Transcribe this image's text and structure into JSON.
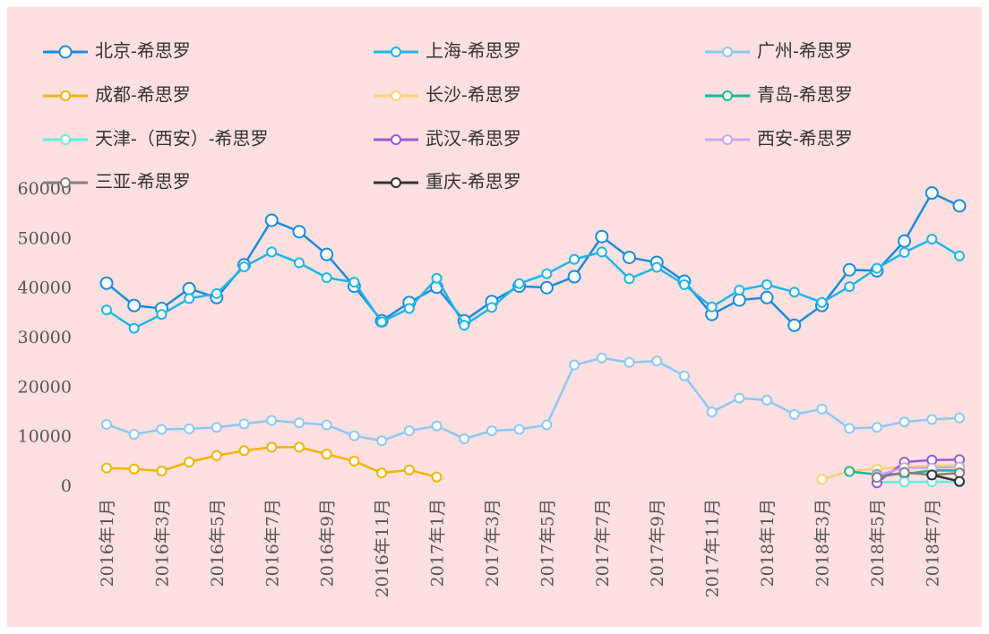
{
  "chart_data": {
    "type": "line",
    "categories": [
      "2016年1月",
      null,
      "2016年3月",
      null,
      "2016年5月",
      null,
      "2016年7月",
      null,
      "2016年9月",
      null,
      "2016年11月",
      null,
      "2017年1月",
      null,
      "2017年3月",
      null,
      "2017年5月",
      null,
      "2017年7月",
      null,
      "2017年9月",
      null,
      "2017年11月",
      null,
      "2018年1月",
      null,
      "2018年3月",
      null,
      "2018年5月",
      null,
      "2018年7月",
      null
    ],
    "ylim": [
      0,
      60000
    ],
    "yticks": [
      0,
      10000,
      20000,
      30000,
      40000,
      50000,
      60000
    ],
    "series": [
      {
        "name": "北京-希思罗",
        "color": "#1a8be0",
        "values": [
          40800,
          36300,
          35700,
          39700,
          37900,
          44500,
          53500,
          51200,
          46600,
          40200,
          33200,
          36900,
          40000,
          33200,
          37100,
          40200,
          39900,
          42100,
          50200,
          46000,
          45000,
          41200,
          34500,
          37400,
          37900,
          32300,
          36300,
          43500,
          43300,
          49300,
          59000,
          56400
        ]
      },
      {
        "name": "上海-希思罗",
        "color": "#1db6ea",
        "values": [
          35400,
          31700,
          34500,
          37700,
          38700,
          44100,
          47100,
          44900,
          41900,
          41000,
          33000,
          35700,
          41800,
          32300,
          35900,
          40700,
          42700,
          45600,
          47100,
          41700,
          44000,
          40500,
          36000,
          39400,
          40500,
          39000,
          36900,
          40100,
          43800,
          47000,
          49700,
          46300
        ]
      },
      {
        "name": "广州-希思罗",
        "color": "#8cc8f6",
        "values": [
          12300,
          10300,
          11300,
          11400,
          11700,
          12400,
          13100,
          12600,
          12200,
          10000,
          9000,
          11000,
          12000,
          9400,
          11000,
          11300,
          12200,
          24300,
          25700,
          24800,
          25100,
          22100,
          14800,
          17600,
          17200,
          14300,
          15400,
          11500,
          11700,
          12800,
          13300,
          13600
        ]
      },
      {
        "name": "成都-希思罗",
        "color": "#f5b400",
        "values": [
          3500,
          3300,
          2900,
          4700,
          6000,
          7000,
          7700,
          7700,
          6300,
          4900,
          2500,
          3100,
          1700,
          null,
          null,
          null,
          null,
          null,
          null,
          null,
          null,
          null,
          null,
          null,
          null,
          null,
          null,
          null,
          null,
          null,
          null,
          null
        ]
      },
      {
        "name": "长沙-希思罗",
        "color": "#fdd26e",
        "values": [
          null,
          null,
          null,
          null,
          null,
          null,
          null,
          null,
          null,
          null,
          null,
          null,
          null,
          null,
          null,
          null,
          null,
          null,
          null,
          null,
          null,
          null,
          null,
          null,
          null,
          null,
          1200,
          2900,
          3300,
          3800,
          3900,
          4100
        ]
      },
      {
        "name": "青岛-希思罗",
        "color": "#17b898",
        "values": [
          null,
          null,
          null,
          null,
          null,
          null,
          null,
          null,
          null,
          null,
          null,
          null,
          null,
          null,
          null,
          null,
          null,
          null,
          null,
          null,
          null,
          null,
          null,
          null,
          null,
          null,
          null,
          2800,
          2200,
          2300,
          3000,
          3000
        ]
      },
      {
        "name": "天津-（西安）-希思罗",
        "color": "#5ff0dc",
        "values": [
          null,
          null,
          null,
          null,
          null,
          null,
          null,
          null,
          null,
          null,
          null,
          null,
          null,
          null,
          null,
          null,
          null,
          null,
          null,
          null,
          null,
          null,
          null,
          null,
          null,
          null,
          null,
          null,
          600,
          700,
          700,
          700
        ]
      },
      {
        "name": "武汉-希思罗",
        "color": "#9b59d6",
        "values": [
          null,
          null,
          null,
          null,
          null,
          null,
          null,
          null,
          null,
          null,
          null,
          null,
          null,
          null,
          null,
          null,
          null,
          null,
          null,
          null,
          null,
          null,
          null,
          null,
          null,
          null,
          null,
          null,
          500,
          4700,
          5100,
          5200
        ]
      },
      {
        "name": "西安-希思罗",
        "color": "#c9a7f0",
        "values": [
          null,
          null,
          null,
          null,
          null,
          null,
          null,
          null,
          null,
          null,
          null,
          null,
          null,
          null,
          null,
          null,
          null,
          null,
          null,
          null,
          null,
          null,
          null,
          null,
          null,
          null,
          null,
          null,
          2000,
          3600,
          3500,
          3700
        ]
      },
      {
        "name": "三亚-希思罗",
        "color": "#808080",
        "values": [
          null,
          null,
          null,
          null,
          null,
          null,
          null,
          null,
          null,
          null,
          null,
          null,
          null,
          null,
          null,
          null,
          null,
          null,
          null,
          null,
          null,
          null,
          null,
          null,
          null,
          null,
          null,
          null,
          1600,
          2600,
          2100,
          2500
        ]
      },
      {
        "name": "重庆-希思罗",
        "color": "#333333",
        "values": [
          null,
          null,
          null,
          null,
          null,
          null,
          null,
          null,
          null,
          null,
          null,
          null,
          null,
          null,
          null,
          null,
          null,
          null,
          null,
          null,
          null,
          null,
          null,
          null,
          null,
          null,
          null,
          null,
          null,
          null,
          2100,
          800
        ]
      }
    ]
  }
}
